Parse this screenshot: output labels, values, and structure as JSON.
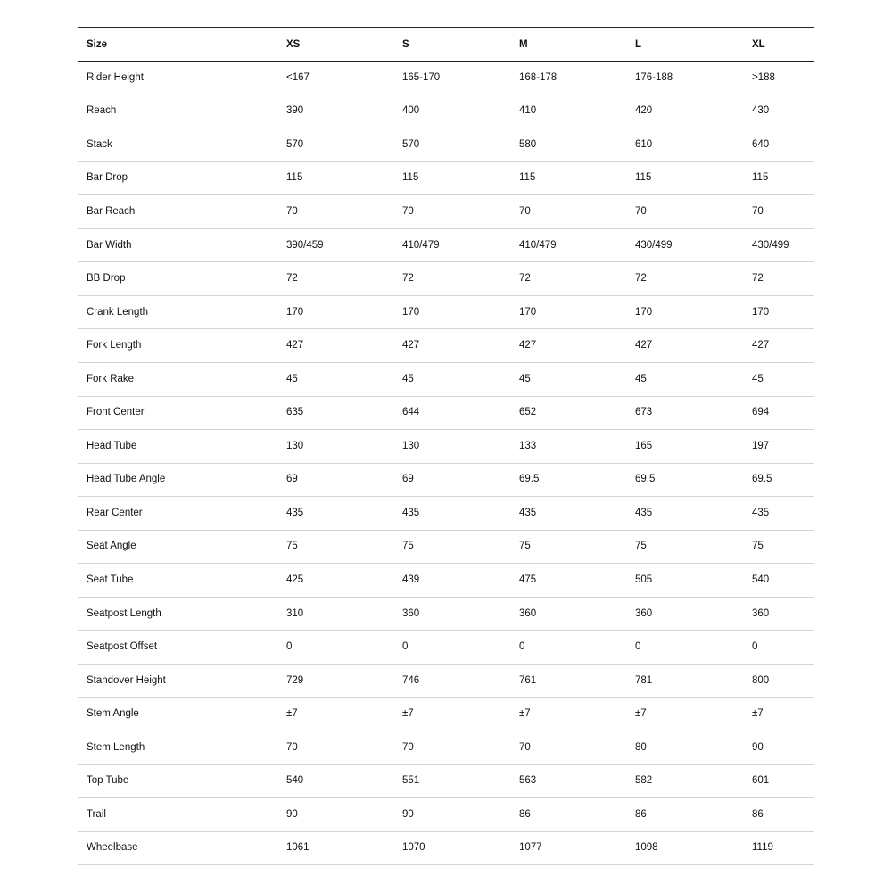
{
  "table": {
    "header": [
      "Size",
      "XS",
      "S",
      "M",
      "L",
      "XL"
    ],
    "rows": [
      [
        "Rider Height",
        "<167",
        "165-170",
        "168-178",
        "176-188",
        ">188"
      ],
      [
        "Reach",
        "390",
        "400",
        "410",
        "420",
        "430"
      ],
      [
        "Stack",
        "570",
        "570",
        "580",
        "610",
        "640"
      ],
      [
        "Bar Drop",
        "115",
        "115",
        "115",
        "115",
        "115"
      ],
      [
        "Bar Reach",
        "70",
        "70",
        "70",
        "70",
        "70"
      ],
      [
        "Bar Width",
        "390/459",
        "410/479",
        "410/479",
        "430/499",
        "430/499"
      ],
      [
        "BB Drop",
        "72",
        "72",
        "72",
        "72",
        "72"
      ],
      [
        "Crank Length",
        "170",
        "170",
        "170",
        "170",
        "170"
      ],
      [
        "Fork Length",
        "427",
        "427",
        "427",
        "427",
        "427"
      ],
      [
        "Fork Rake",
        "45",
        "45",
        "45",
        "45",
        "45"
      ],
      [
        "Front Center",
        "635",
        "644",
        "652",
        "673",
        "694"
      ],
      [
        "Head Tube",
        "130",
        "130",
        "133",
        "165",
        "197"
      ],
      [
        "Head Tube Angle",
        "69",
        "69",
        "69.5",
        "69.5",
        "69.5"
      ],
      [
        "Rear Center",
        "435",
        "435",
        "435",
        "435",
        "435"
      ],
      [
        "Seat Angle",
        "75",
        "75",
        "75",
        "75",
        "75"
      ],
      [
        "Seat Tube",
        "425",
        "439",
        "475",
        "505",
        "540"
      ],
      [
        "Seatpost Length",
        "310",
        "360",
        "360",
        "360",
        "360"
      ],
      [
        "Seatpost Offset",
        "0",
        "0",
        "0",
        "0",
        "0"
      ],
      [
        "Standover Height",
        "729",
        "746",
        "761",
        "781",
        "800"
      ],
      [
        "Stem Angle",
        "±7",
        "±7",
        "±7",
        "±7",
        "±7"
      ],
      [
        "Stem Length",
        "70",
        "70",
        "70",
        "80",
        "90"
      ],
      [
        "Top Tube",
        "540",
        "551",
        "563",
        "582",
        "601"
      ],
      [
        "Trail",
        "90",
        "90",
        "86",
        "86",
        "86"
      ],
      [
        "Wheelbase",
        "1061",
        "1070",
        "1077",
        "1098",
        "1119"
      ]
    ]
  }
}
